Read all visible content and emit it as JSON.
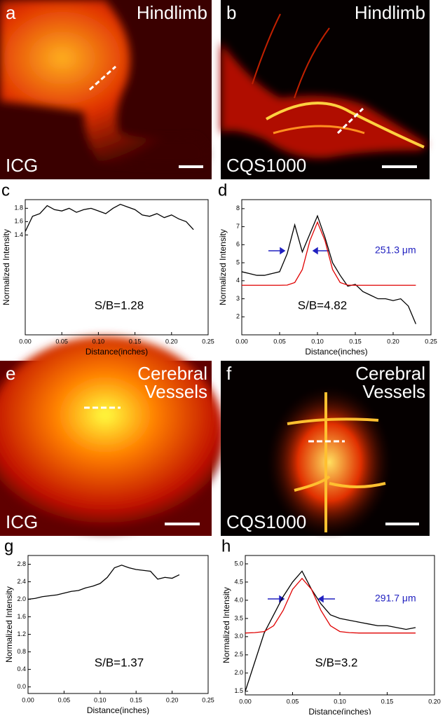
{
  "images": [
    {
      "panel": "a",
      "title": [
        "Hindlimb"
      ],
      "label": "ICG"
    },
    {
      "panel": "b",
      "title": [
        "Hindlimb"
      ],
      "label": "CQS1000"
    },
    {
      "panel": "e",
      "title": [
        "Cerebral",
        "Vessels"
      ],
      "label": "ICG"
    },
    {
      "panel": "f",
      "title": [
        "Cerebral",
        "Vessels"
      ],
      "label": "CQS1000"
    }
  ],
  "chart_data": [
    {
      "type": "line",
      "panel": "c",
      "ylabel": "Normalized Intensity",
      "xlabel": "Distance(inches)",
      "xlim": [
        0,
        0.25
      ],
      "ylim": [
        -0.1,
        1.93
      ],
      "xticks": [
        {
          "value": 0,
          "label": "0.00"
        },
        0.05,
        {
          "value": 0.1,
          "label": "0.10"
        },
        0.15,
        {
          "value": 0.2,
          "label": "0.20"
        },
        0.25
      ],
      "yticks": [
        1.4,
        1.6,
        1.8
      ],
      "annotations": [
        {
          "text": "S/B=1.28"
        }
      ],
      "series": [
        {
          "color": "#000000",
          "x": [
            0,
            0.01,
            0.02,
            0.03,
            0.04,
            0.05,
            0.06,
            0.07,
            0.08,
            0.09,
            0.1,
            0.11,
            0.12,
            0.13,
            0.14,
            0.15,
            0.16,
            0.17,
            0.18,
            0.19,
            0.2,
            0.21,
            0.22,
            0.23
          ],
          "values": [
            1.45,
            1.68,
            1.72,
            1.84,
            1.78,
            1.76,
            1.8,
            1.74,
            1.78,
            1.8,
            1.76,
            1.72,
            1.8,
            1.86,
            1.82,
            1.78,
            1.7,
            1.68,
            1.72,
            1.66,
            1.7,
            1.64,
            1.6,
            1.48
          ]
        }
      ]
    },
    {
      "type": "line",
      "panel": "d",
      "ylabel": "Normalized Intensity",
      "xlabel": "Distance(inches)",
      "xlim": [
        0,
        0.25
      ],
      "ylim": [
        1,
        8.5
      ],
      "xticks": [
        {
          "value": 0,
          "label": "0.00"
        },
        0.05,
        {
          "value": 0.1,
          "label": "0.10"
        },
        0.15,
        {
          "value": 0.2,
          "label": "0.20"
        },
        0.25
      ],
      "yticks": [
        2,
        3,
        4,
        5,
        6,
        7,
        8
      ],
      "annotations": [
        {
          "text": "S/B=4.82"
        },
        {
          "text": "251.3 μm"
        }
      ],
      "series": [
        {
          "color": "#000000",
          "x": [
            0,
            0.01,
            0.02,
            0.03,
            0.04,
            0.05,
            0.06,
            0.07,
            0.08,
            0.09,
            0.1,
            0.11,
            0.12,
            0.13,
            0.14,
            0.15,
            0.16,
            0.17,
            0.18,
            0.19,
            0.2,
            0.21,
            0.22,
            0.23
          ],
          "values": [
            4.5,
            4.4,
            4.3,
            4.3,
            4.4,
            4.5,
            5.5,
            7.1,
            5.6,
            6.6,
            7.6,
            6.4,
            5.0,
            4.3,
            3.7,
            3.8,
            3.4,
            3.2,
            3.0,
            3.0,
            2.9,
            3.0,
            2.6,
            1.6
          ]
        },
        {
          "color": "#e00000",
          "x": [
            0,
            0.01,
            0.02,
            0.03,
            0.04,
            0.05,
            0.06,
            0.07,
            0.08,
            0.09,
            0.1,
            0.11,
            0.12,
            0.13,
            0.14,
            0.15,
            0.16,
            0.17,
            0.18,
            0.19,
            0.2,
            0.21,
            0.22,
            0.23
          ],
          "values": [
            3.75,
            3.75,
            3.75,
            3.75,
            3.75,
            3.75,
            3.76,
            3.9,
            4.62,
            6.22,
            7.25,
            6.22,
            4.62,
            3.9,
            3.76,
            3.75,
            3.75,
            3.75,
            3.75,
            3.75,
            3.75,
            3.75,
            3.75,
            3.75
          ]
        }
      ]
    },
    {
      "type": "line",
      "panel": "g",
      "ylabel": "Normalized Intensity",
      "xlabel": "Distance(inches)",
      "xlim": [
        0,
        0.25
      ],
      "ylim": [
        -0.15,
        3.0
      ],
      "xticks": [
        {
          "value": 0,
          "label": "0.00"
        },
        0.05,
        {
          "value": 0.1,
          "label": "0.10"
        },
        0.15,
        {
          "value": 0.2,
          "label": "0.20"
        },
        0.25
      ],
      "yticks": [
        {
          "value": 0,
          "label": "0.0"
        },
        0.4,
        0.8,
        1.2,
        1.6,
        {
          "value": 2,
          "label": "2.0"
        },
        2.4,
        2.8
      ],
      "annotations": [
        {
          "text": "S/B=1.37"
        }
      ],
      "series": [
        {
          "color": "#000000",
          "x": [
            0,
            0.01,
            0.02,
            0.03,
            0.04,
            0.05,
            0.06,
            0.07,
            0.08,
            0.09,
            0.1,
            0.11,
            0.12,
            0.13,
            0.14,
            0.15,
            0.16,
            0.17,
            0.18,
            0.19,
            0.2,
            0.21
          ],
          "values": [
            2.0,
            2.02,
            2.06,
            2.08,
            2.1,
            2.14,
            2.18,
            2.2,
            2.26,
            2.3,
            2.36,
            2.5,
            2.72,
            2.78,
            2.72,
            2.68,
            2.66,
            2.64,
            2.46,
            2.5,
            2.48,
            2.56
          ]
        }
      ]
    },
    {
      "type": "line",
      "panel": "h",
      "ylabel": "Normalized Intensity",
      "xlabel": "Distance(inches)",
      "xlim": [
        0,
        0.2
      ],
      "ylim": [
        1.4,
        5.23
      ],
      "xticks": [
        {
          "value": 0,
          "label": "0.00"
        },
        0.05,
        {
          "value": 0.1,
          "label": "0.10"
        },
        0.15,
        {
          "value": 0.2,
          "label": "0.20"
        }
      ],
      "yticks": [
        1.5,
        {
          "value": 2,
          "label": "2.0"
        },
        2.5,
        {
          "value": 3,
          "label": "3.0"
        },
        3.5,
        {
          "value": 4,
          "label": "4.0"
        },
        4.5,
        {
          "value": 5,
          "label": "5.0"
        }
      ],
      "annotations": [
        {
          "text": "S/B=3.2"
        },
        {
          "text": "291.7 μm"
        }
      ],
      "series": [
        {
          "color": "#000000",
          "x": [
            0,
            0.01,
            0.02,
            0.03,
            0.04,
            0.05,
            0.06,
            0.07,
            0.08,
            0.09,
            0.1,
            0.11,
            0.12,
            0.13,
            0.14,
            0.15,
            0.16,
            0.17,
            0.18
          ],
          "values": [
            1.5,
            2.3,
            3.1,
            3.6,
            4.1,
            4.5,
            4.8,
            4.3,
            3.9,
            3.6,
            3.5,
            3.45,
            3.4,
            3.35,
            3.3,
            3.3,
            3.25,
            3.2,
            3.25
          ]
        },
        {
          "color": "#e00000",
          "x": [
            0,
            0.01,
            0.02,
            0.03,
            0.04,
            0.05,
            0.06,
            0.07,
            0.08,
            0.09,
            0.1,
            0.11,
            0.12,
            0.13,
            0.14,
            0.15,
            0.16,
            0.17,
            0.18
          ],
          "values": [
            3.1,
            3.11,
            3.14,
            3.3,
            3.72,
            4.3,
            4.6,
            4.3,
            3.72,
            3.3,
            3.14,
            3.11,
            3.1,
            3.1,
            3.1,
            3.1,
            3.1,
            3.1,
            3.1
          ]
        }
      ]
    }
  ]
}
